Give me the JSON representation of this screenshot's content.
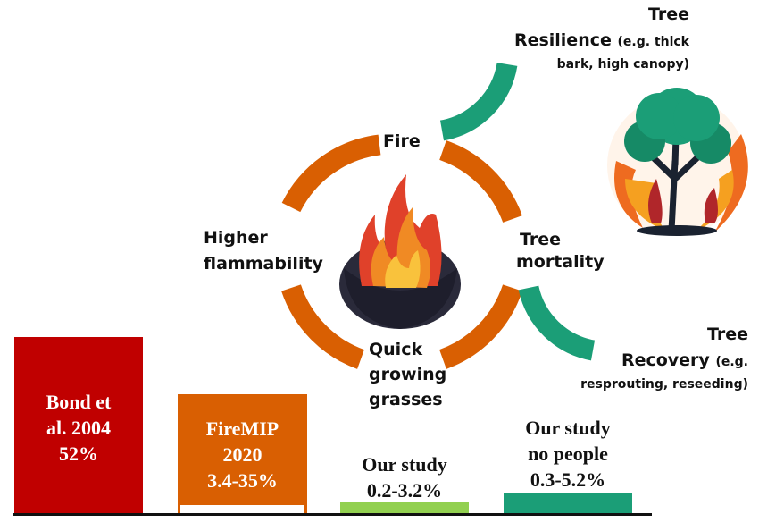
{
  "colors": {
    "orange": "#d95f02",
    "teal": "#1b9e77",
    "red": "#c00000",
    "green": "#92d050"
  },
  "cycle": {
    "fire": "Fire",
    "tree_mortality": [
      "Tree",
      "mortality"
    ],
    "quick_grasses": [
      "Quick",
      "growing",
      "grasses"
    ],
    "higher_flammability": [
      "Higher",
      "flammability"
    ]
  },
  "resilience": {
    "line1": "Tree",
    "line2_main": "Resilience",
    "line2_note": "(e.g. thick",
    "line3": "bark, high canopy)"
  },
  "recovery": {
    "line1": "Tree",
    "line2_main": "Recovery",
    "line2_note": "(e.g.",
    "line3": "resprouting, reseeding)"
  },
  "icons": {
    "center": "flame-icon",
    "tree": "burning-tree-icon"
  },
  "bars": [
    {
      "lines": [
        "Bond et",
        "al. 2004",
        "52%"
      ],
      "color": "#c00000"
    },
    {
      "lines": [
        "FireMIP",
        "2020",
        "3.4-35%"
      ],
      "color": "#d95f02"
    },
    {
      "lines": [
        "Our study",
        "0.2-3.2%"
      ],
      "color": "#92d050"
    },
    {
      "lines": [
        "Our study",
        "no people",
        "0.3-5.2%"
      ],
      "color": "#1b9e77"
    }
  ]
}
